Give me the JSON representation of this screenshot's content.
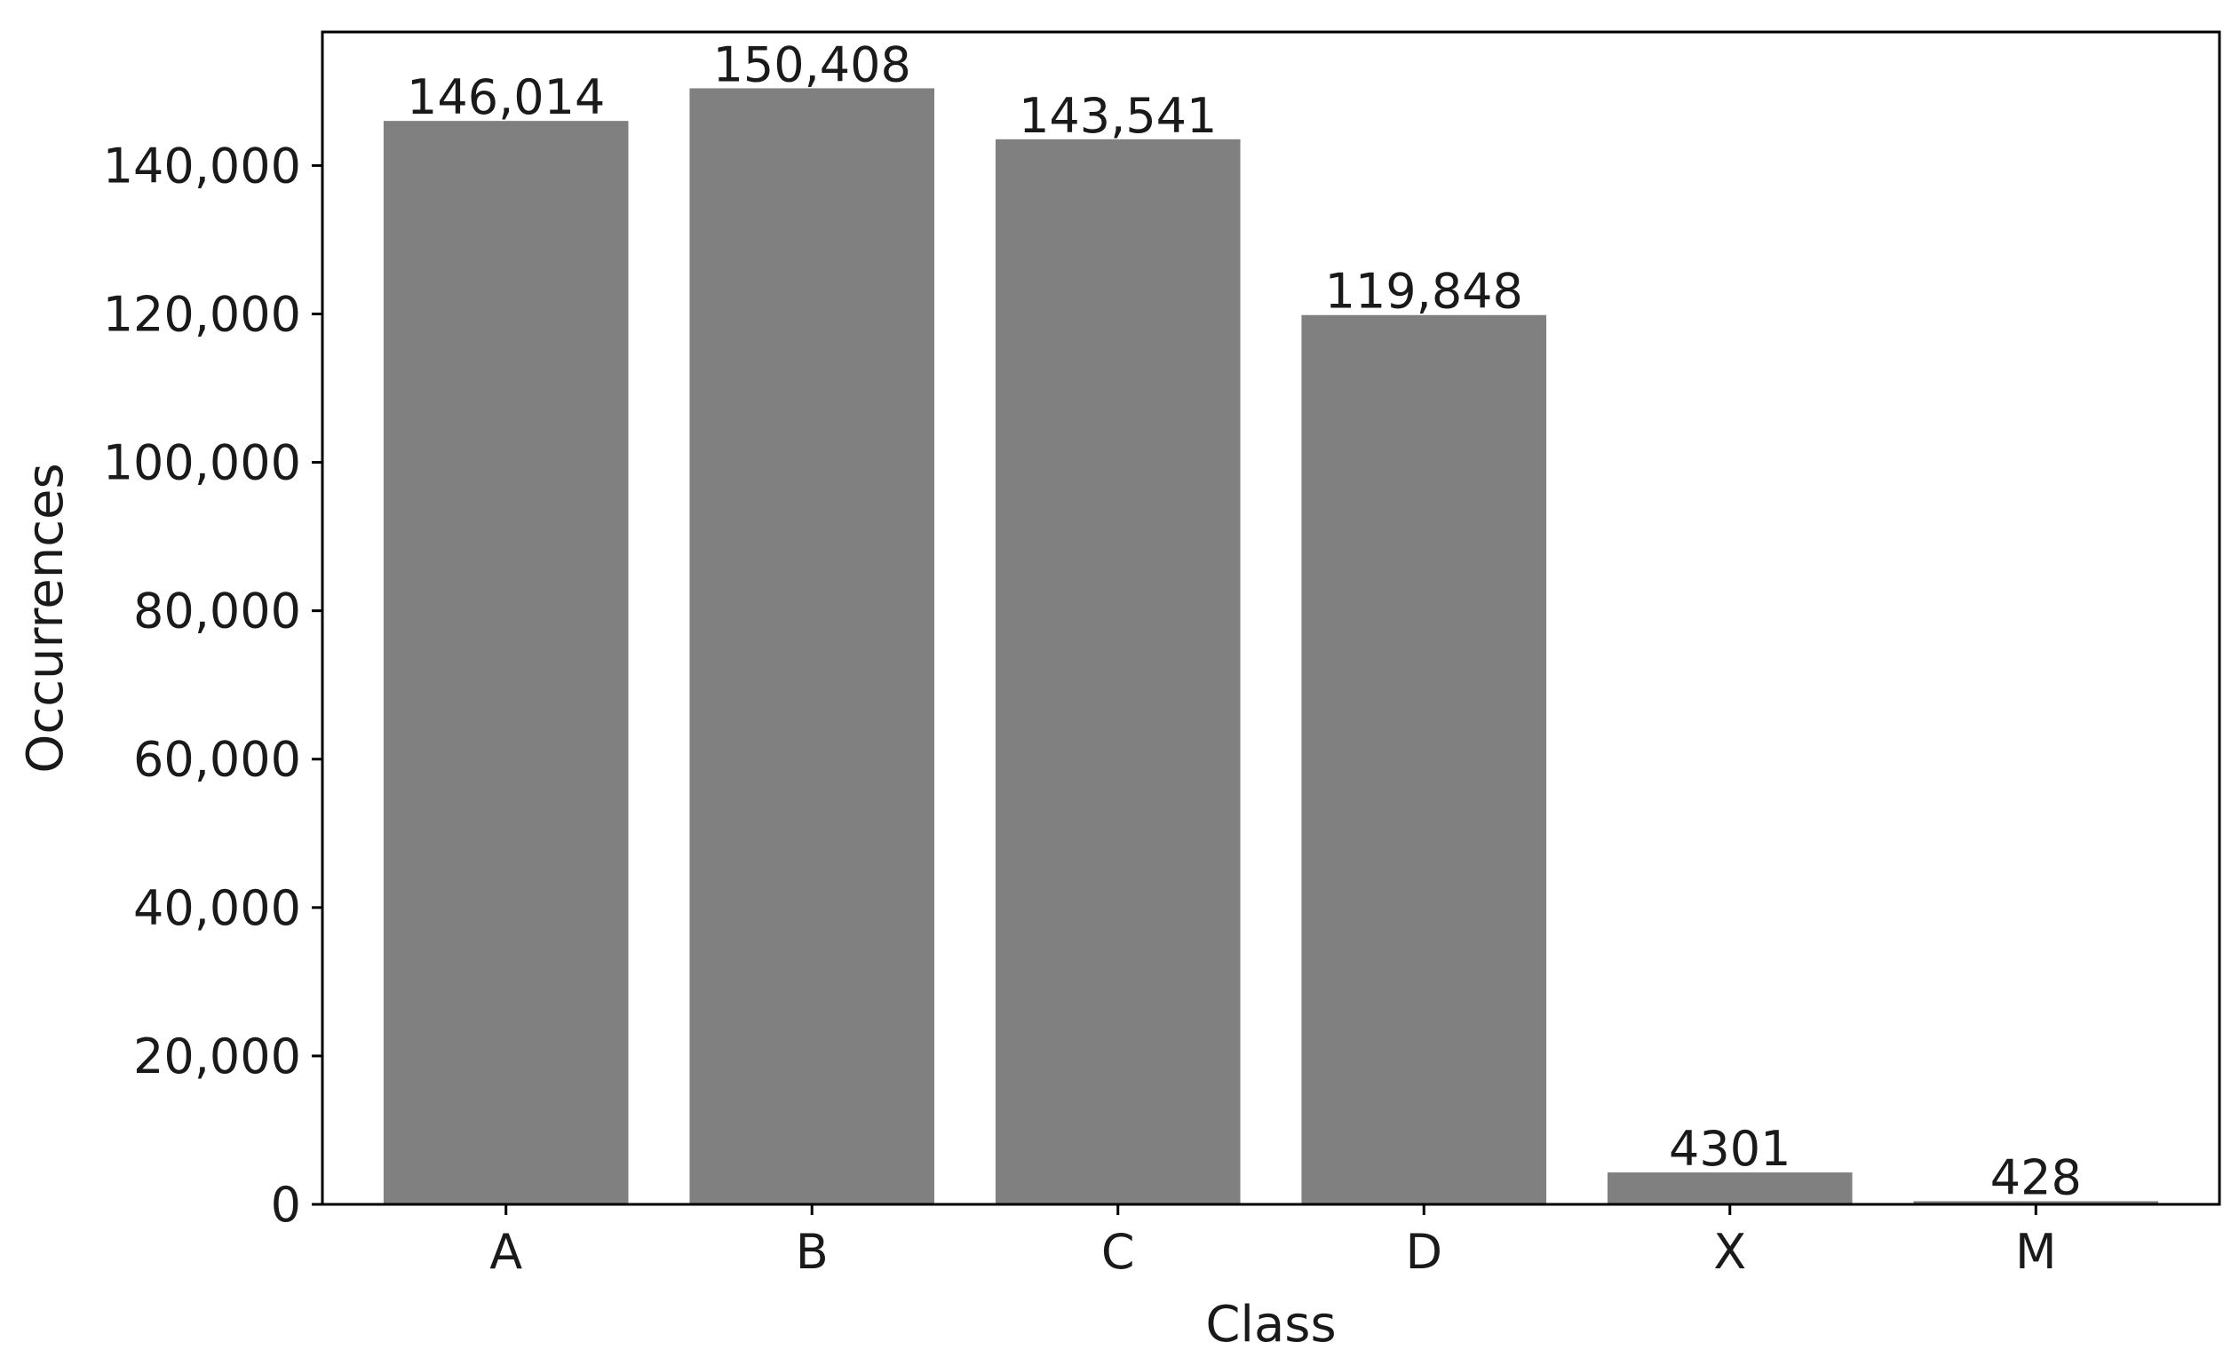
{
  "chart_data": {
    "type": "bar",
    "title": "",
    "xlabel": "Class",
    "ylabel": "Occurrences",
    "categories": [
      "A",
      "B",
      "C",
      "D",
      "X",
      "M"
    ],
    "values": [
      146014,
      150408,
      143541,
      119848,
      4301,
      428
    ],
    "value_labels": [
      "146,014",
      "150,408",
      "143,541",
      "119,848",
      "4301",
      "428"
    ],
    "ylim": [
      0,
      158000
    ],
    "yticks": [
      0,
      20000,
      40000,
      60000,
      80000,
      100000,
      120000,
      140000
    ],
    "ytick_labels": [
      "0",
      "20,000",
      "40,000",
      "60,000",
      "80,000",
      "100,000",
      "120,000",
      "140,000"
    ],
    "grid": false,
    "legend": "none",
    "bar_color": "#808080"
  }
}
